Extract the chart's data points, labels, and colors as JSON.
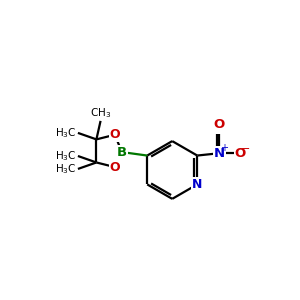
{
  "bg_color": "#ffffff",
  "bond_color": "#000000",
  "boron_color": "#007700",
  "oxygen_color": "#cc0000",
  "nitrogen_color": "#0000cc",
  "figsize": [
    3.0,
    3.0
  ],
  "dpi": 100,
  "xlim": [
    0,
    10
  ],
  "ylim": [
    0,
    10
  ]
}
